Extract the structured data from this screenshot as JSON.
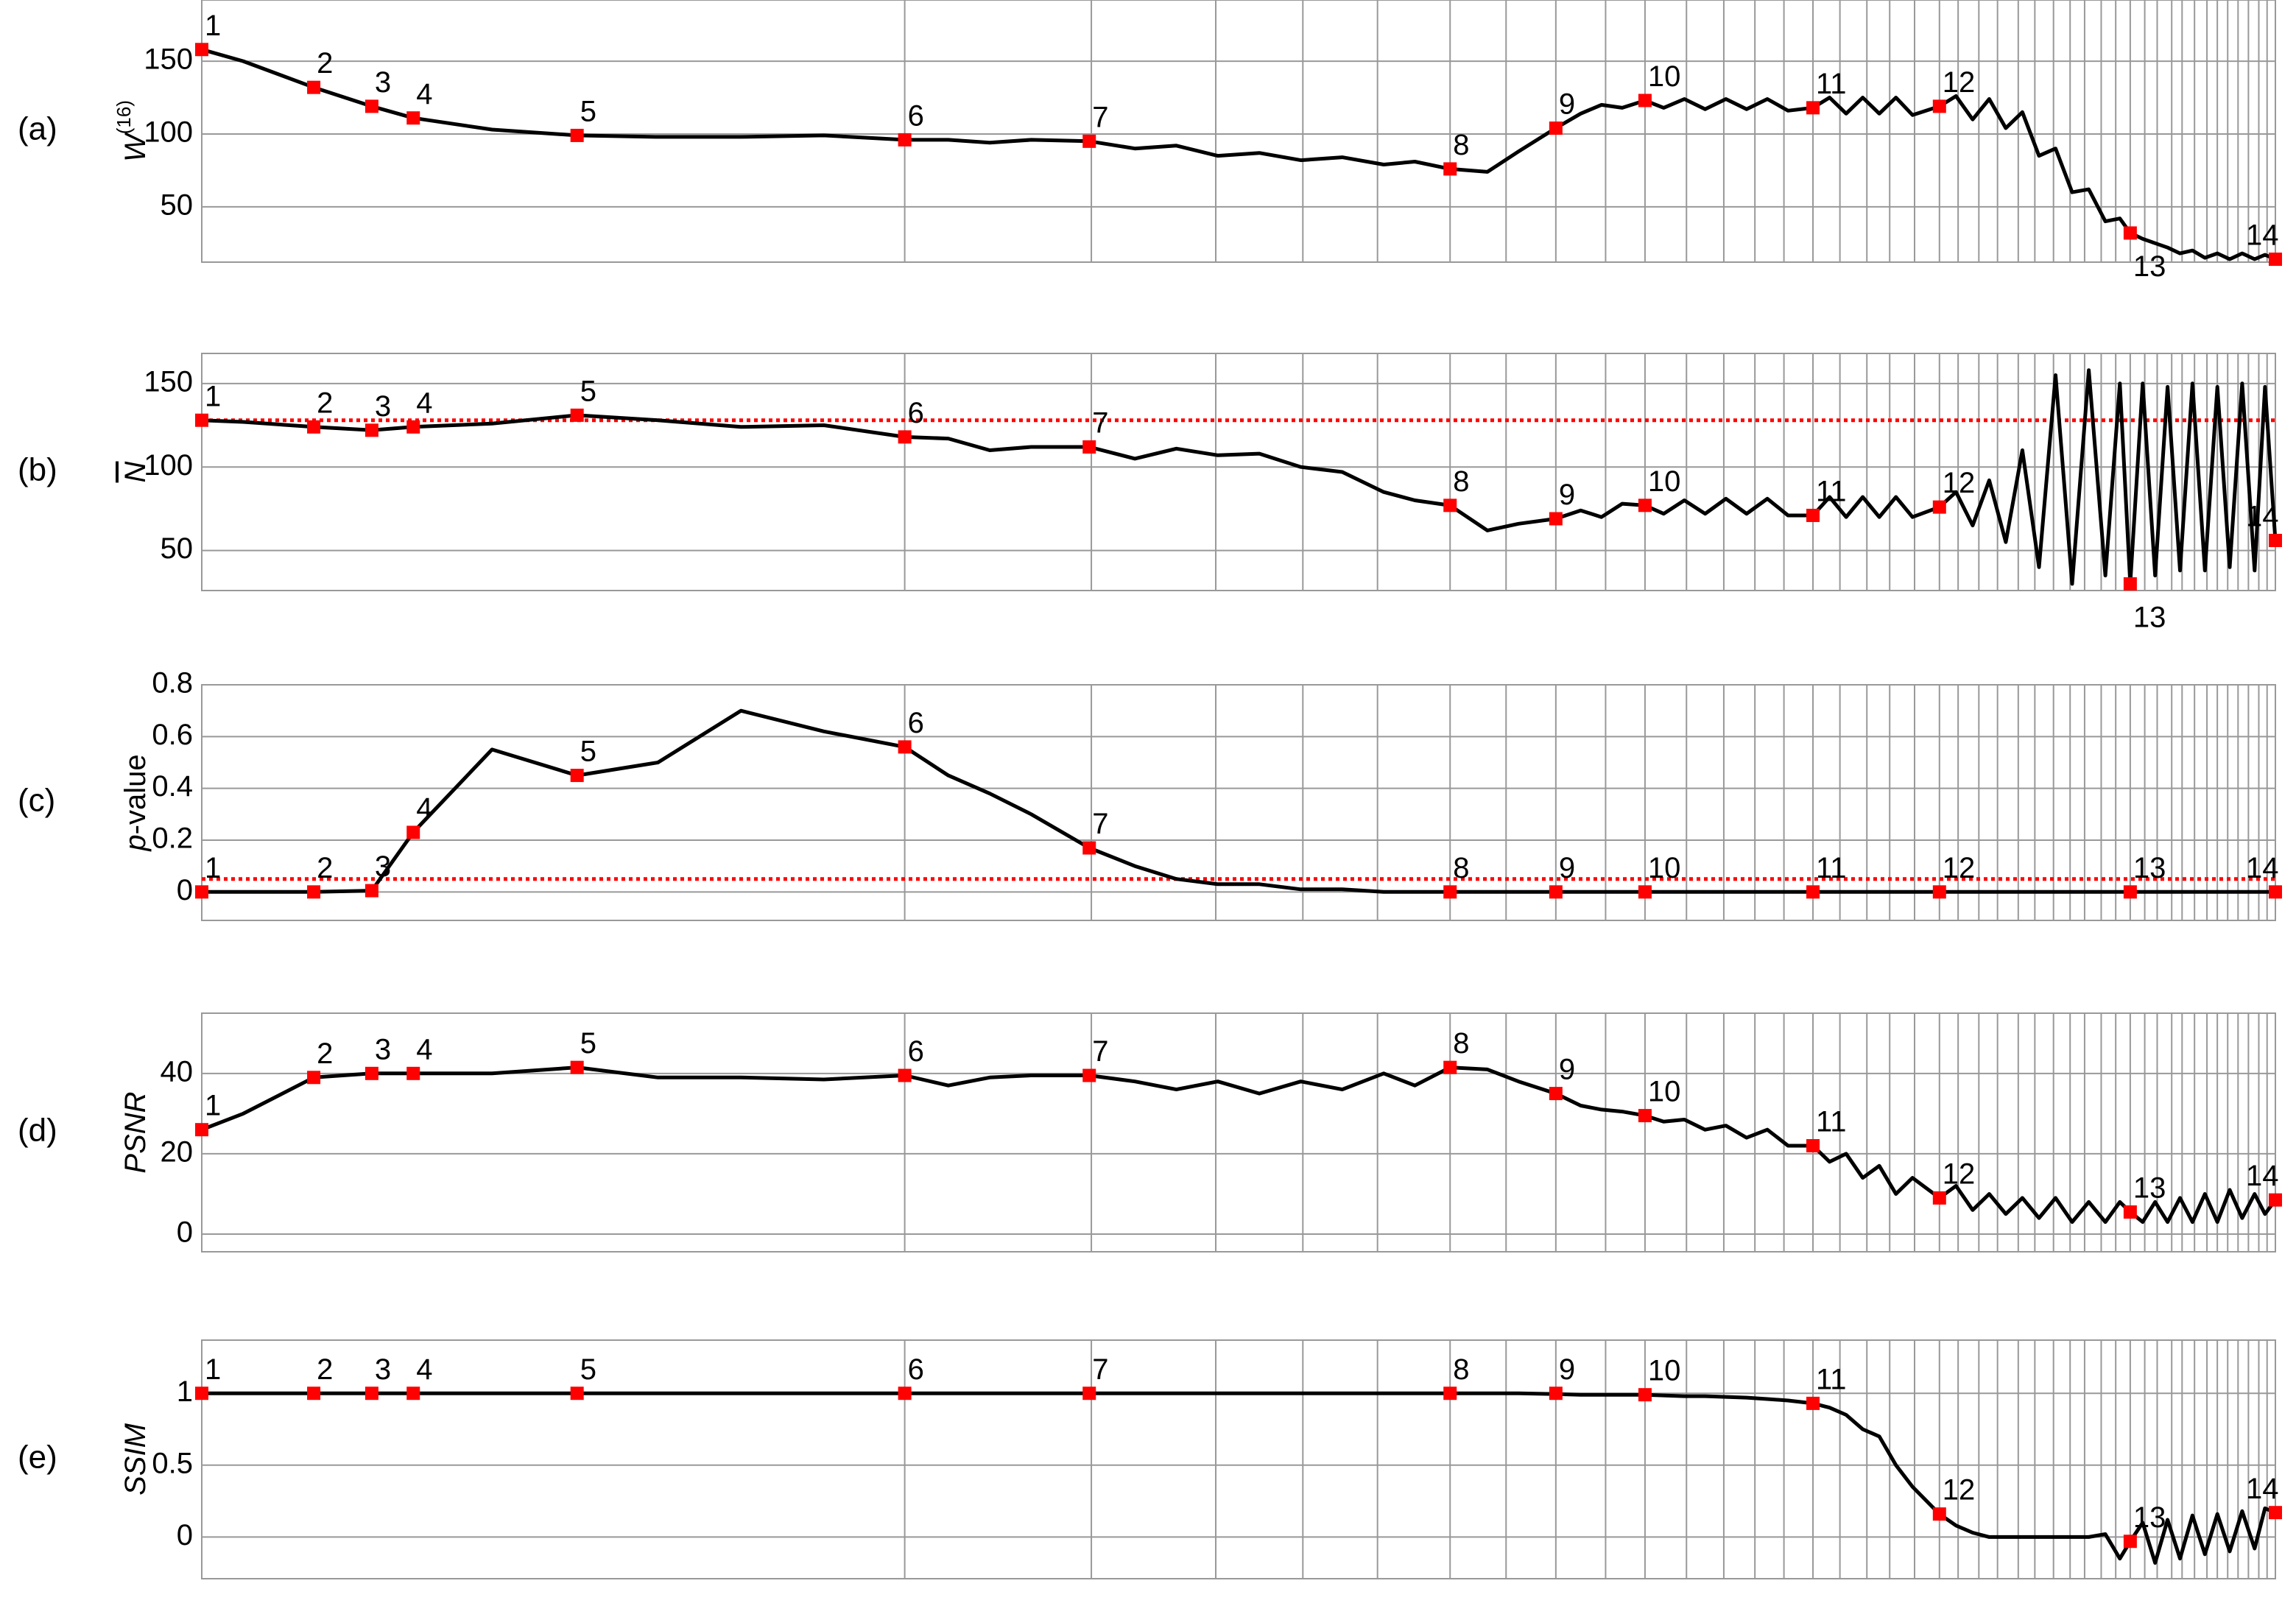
{
  "chart_data": [
    {
      "type": "line",
      "panel_label": "(a)",
      "ylabel": "W",
      "ylabel_sup": "(16)",
      "color": "#000000",
      "x": [
        0,
        2,
        5.4,
        8.2,
        10.2,
        14,
        18.1,
        22,
        26,
        30,
        33.9,
        36,
        38,
        40,
        42.8,
        45,
        47,
        49,
        51,
        53,
        55,
        57,
        58.5,
        60.2,
        62,
        63.5,
        65.3,
        66.5,
        67.5,
        68.5,
        69.6,
        70.5,
        71.5,
        72.5,
        73.5,
        74.5,
        75.5,
        76.5,
        77.7,
        78.5,
        79.3,
        80.1,
        80.9,
        81.7,
        82.5,
        83.8,
        84.6,
        85.4,
        86.2,
        87,
        87.8,
        88.6,
        89.4,
        90.2,
        91,
        91.8,
        92.5,
        93,
        93.6,
        94.2,
        94.8,
        95.4,
        96,
        96.6,
        97.2,
        97.8,
        98.4,
        99,
        99.5,
        100
      ],
      "values": [
        158,
        150,
        132,
        119,
        111,
        103,
        99,
        98,
        98,
        99,
        96,
        96,
        94,
        96,
        95,
        90,
        92,
        85,
        87,
        82,
        84,
        79,
        81,
        76,
        74,
        88,
        104,
        114,
        120,
        118,
        123,
        118,
        124,
        117,
        124,
        117,
        124,
        116,
        118,
        125,
        114,
        125,
        114,
        125,
        113,
        119,
        126,
        110,
        124,
        104,
        115,
        85,
        90,
        60,
        62,
        40,
        42,
        32,
        28,
        25,
        22,
        18,
        20,
        15,
        18,
        14,
        18,
        14,
        17,
        14
      ],
      "markers": {
        "x": [
          0,
          5.4,
          8.2,
          10.2,
          18.1,
          33.9,
          42.8,
          60.2,
          65.3,
          69.6,
          77.7,
          83.8,
          93,
          100
        ],
        "values": [
          158,
          132,
          119,
          111,
          99,
          96,
          95,
          76,
          104,
          123,
          118,
          119,
          32,
          14
        ],
        "labels": [
          "1",
          "2",
          "3",
          "4",
          "5",
          "6",
          "7",
          "8",
          "9",
          "10",
          "11",
          "12",
          "13",
          "14"
        ],
        "color": "#ff0000"
      },
      "xlim": [
        0,
        100
      ],
      "xticks": [
        33.9,
        42.9,
        48.9,
        53.1,
        56.7,
        60.2,
        62.9,
        65.3,
        67.7,
        69.6,
        71.6,
        73.4,
        74.9,
        76.3,
        77.7,
        79.0,
        80.3,
        81.4,
        82.6,
        83.8,
        84.7,
        85.7,
        86.6,
        87.6,
        88.4,
        89.3,
        90.1,
        90.8,
        91.6,
        92.3,
        93.0,
        93.7,
        94.3,
        95.0,
        95.5,
        96.1,
        96.7,
        97.2,
        97.7,
        98.2,
        98.7,
        99.2,
        99.6
      ],
      "ylim": [
        12,
        192
      ],
      "yticks": [
        50,
        100,
        150
      ],
      "grid": true
    },
    {
      "type": "line",
      "panel_label": "(b)",
      "ylabel": "N",
      "ylabel_overline": true,
      "color": "#000000",
      "x": [
        0,
        2,
        5.4,
        8.2,
        10.2,
        14,
        18.1,
        22,
        26,
        30,
        33.9,
        36,
        38,
        40,
        42.8,
        45,
        47,
        49,
        51,
        53,
        55,
        57,
        58.5,
        60.2,
        62,
        63.5,
        65.3,
        66.5,
        67.5,
        68.5,
        69.6,
        70.5,
        71.5,
        72.5,
        73.5,
        74.5,
        75.5,
        76.5,
        77.7,
        78.5,
        79.3,
        80.1,
        80.9,
        81.7,
        82.5,
        83.8,
        84.6,
        85.4,
        86.2,
        87,
        87.8,
        88.6,
        89.4,
        90.2,
        91,
        91.8,
        92.5,
        93,
        93.6,
        94.2,
        94.8,
        95.4,
        96,
        96.6,
        97.2,
        97.8,
        98.4,
        99,
        99.5,
        100
      ],
      "values": [
        128,
        127,
        124,
        122,
        124,
        126,
        131,
        128,
        124,
        125,
        118,
        117,
        110,
        112,
        112,
        105,
        111,
        107,
        108,
        100,
        97,
        85,
        80,
        77,
        62,
        66,
        69,
        74,
        70,
        78,
        77,
        72,
        80,
        72,
        81,
        72,
        81,
        71,
        71,
        82,
        70,
        82,
        70,
        82,
        70,
        76,
        85,
        65,
        92,
        55,
        110,
        40,
        155,
        30,
        158,
        35,
        150,
        30,
        150,
        35,
        148,
        38,
        150,
        38,
        148,
        40,
        150,
        38,
        148,
        56
      ],
      "markers": {
        "x": [
          0,
          5.4,
          8.2,
          10.2,
          18.1,
          33.9,
          42.8,
          60.2,
          65.3,
          69.6,
          77.7,
          83.8,
          93,
          100
        ],
        "values": [
          128,
          124,
          122,
          124,
          131,
          118,
          112,
          77,
          69,
          77,
          71,
          76,
          30,
          56
        ],
        "labels": [
          "1",
          "2",
          "3",
          "4",
          "5",
          "6",
          "7",
          "8",
          "9",
          "10",
          "11",
          "12",
          "13",
          "14"
        ],
        "color": "#ff0000"
      },
      "threshold": {
        "value": 128,
        "color": "#ff0000"
      },
      "xlim": [
        0,
        100
      ],
      "xticks": [
        33.9,
        42.9,
        48.9,
        53.1,
        56.7,
        60.2,
        62.9,
        65.3,
        67.7,
        69.6,
        71.6,
        73.4,
        74.9,
        76.3,
        77.7,
        79.0,
        80.3,
        81.4,
        82.6,
        83.8,
        84.7,
        85.7,
        86.6,
        87.6,
        88.4,
        89.3,
        90.1,
        90.8,
        91.6,
        92.3,
        93.0,
        93.7,
        94.3,
        95.0,
        95.5,
        96.1,
        96.7,
        97.2,
        97.7,
        98.2,
        98.7,
        99.2,
        99.6
      ],
      "ylim": [
        26,
        168
      ],
      "yticks": [
        50,
        100,
        150
      ],
      "grid": true
    },
    {
      "type": "line",
      "panel_label": "(c)",
      "ylabel_prefix": "p",
      "ylabel": "-value",
      "color": "#000000",
      "x": [
        0,
        2,
        5.4,
        8.2,
        10.2,
        14,
        18.1,
        22,
        26,
        30,
        33.9,
        36,
        38,
        40,
        42.8,
        45,
        47,
        49,
        51,
        53,
        55,
        57,
        58.5,
        60.2,
        62,
        63.5,
        65.3,
        66.5,
        67.5,
        68.5,
        69.6,
        70.5,
        71.5,
        72.5,
        73.5,
        74.5,
        75.5,
        76.5,
        77.7,
        78.5,
        79.3,
        80.1,
        80.9,
        81.7,
        82.5,
        83.8,
        84.6,
        85.4,
        86.2,
        87,
        87.8,
        88.6,
        89.4,
        90.2,
        91,
        91.8,
        92.5,
        93,
        93.6,
        94.2,
        94.8,
        95.4,
        96,
        96.6,
        97.2,
        97.8,
        98.4,
        99,
        99.5,
        100
      ],
      "values": [
        0,
        0,
        0,
        0.005,
        0.23,
        0.55,
        0.45,
        0.5,
        0.7,
        0.62,
        0.56,
        0.45,
        0.38,
        0.3,
        0.17,
        0.1,
        0.05,
        0.03,
        0.03,
        0.01,
        0.01,
        0,
        0,
        0,
        0,
        0,
        0,
        0,
        0,
        0,
        0,
        0,
        0,
        0,
        0,
        0,
        0,
        0,
        0,
        0,
        0,
        0,
        0,
        0,
        0,
        0,
        0,
        0,
        0,
        0,
        0,
        0,
        0,
        0,
        0,
        0,
        0,
        0,
        0,
        0,
        0,
        0,
        0,
        0,
        0,
        0,
        0,
        0,
        0,
        0
      ],
      "markers": {
        "x": [
          0,
          5.4,
          8.2,
          10.2,
          18.1,
          33.9,
          42.8,
          60.2,
          65.3,
          69.6,
          77.7,
          83.8,
          93,
          100
        ],
        "values": [
          0,
          0,
          0.005,
          0.23,
          0.45,
          0.56,
          0.17,
          0,
          0,
          0,
          0,
          0,
          0,
          0
        ],
        "labels": [
          "1",
          "2",
          "3",
          "4",
          "5",
          "6",
          "7",
          "8",
          "9",
          "10",
          "11",
          "12",
          "13",
          "14"
        ],
        "color": "#ff0000"
      },
      "threshold": {
        "value": 0.05,
        "color": "#ff0000"
      },
      "xlim": [
        0,
        100
      ],
      "xticks": [
        33.9,
        42.9,
        48.9,
        53.1,
        56.7,
        60.2,
        62.9,
        65.3,
        67.7,
        69.6,
        71.6,
        73.4,
        74.9,
        76.3,
        77.7,
        79.0,
        80.3,
        81.4,
        82.6,
        83.8,
        84.7,
        85.7,
        86.6,
        87.6,
        88.4,
        89.3,
        90.1,
        90.8,
        91.6,
        92.3,
        93.0,
        93.7,
        94.3,
        95.0,
        95.5,
        96.1,
        96.7,
        97.2,
        97.7,
        98.2,
        98.7,
        99.2,
        99.6
      ],
      "ylim": [
        -0.11,
        0.8
      ],
      "yticks": [
        0,
        0.2,
        0.4,
        0.6,
        0.8
      ],
      "grid": true
    },
    {
      "type": "line",
      "panel_label": "(d)",
      "ylabel": "PSNR",
      "color": "#000000",
      "x": [
        0,
        2,
        5.4,
        8.2,
        10.2,
        14,
        18.1,
        22,
        26,
        30,
        33.9,
        36,
        38,
        40,
        42.8,
        45,
        47,
        49,
        51,
        53,
        55,
        57,
        58.5,
        60.2,
        62,
        63.5,
        65.3,
        66.5,
        67.5,
        68.5,
        69.6,
        70.5,
        71.5,
        72.5,
        73.5,
        74.5,
        75.5,
        76.5,
        77.7,
        78.5,
        79.3,
        80.1,
        80.9,
        81.7,
        82.5,
        83.8,
        84.6,
        85.4,
        86.2,
        87,
        87.8,
        88.6,
        89.4,
        90.2,
        91,
        91.8,
        92.5,
        93,
        93.6,
        94.2,
        94.8,
        95.4,
        96,
        96.6,
        97.2,
        97.8,
        98.4,
        99,
        99.5,
        100
      ],
      "values": [
        26,
        30,
        39,
        40,
        40,
        40,
        41.5,
        39,
        39,
        38.5,
        39.5,
        37,
        39,
        39.5,
        39.5,
        38,
        36,
        38,
        35,
        38,
        36,
        40,
        37,
        41.5,
        41,
        38,
        35,
        32,
        31,
        30.5,
        29.5,
        28,
        28.5,
        26,
        27,
        24,
        26,
        22,
        22,
        18,
        20,
        14,
        17,
        10,
        14,
        9,
        12,
        6,
        10,
        5,
        9,
        4,
        9,
        3,
        8,
        3,
        8,
        5.5,
        3,
        8,
        3,
        9,
        3,
        10,
        3,
        11,
        4,
        10,
        5,
        8.5
      ],
      "markers": {
        "x": [
          0,
          5.4,
          8.2,
          10.2,
          18.1,
          33.9,
          42.8,
          60.2,
          65.3,
          69.6,
          77.7,
          83.8,
          93,
          100
        ],
        "values": [
          26,
          39,
          40,
          40,
          41.5,
          39.5,
          39.5,
          41.5,
          35,
          29.5,
          22,
          9,
          5.5,
          8.5
        ],
        "labels": [
          "1",
          "2",
          "3",
          "4",
          "5",
          "6",
          "7",
          "8",
          "9",
          "10",
          "11",
          "12",
          "13",
          "14"
        ],
        "color": "#ff0000"
      },
      "xlim": [
        0,
        100
      ],
      "xticks": [
        33.9,
        42.9,
        48.9,
        53.1,
        56.7,
        60.2,
        62.9,
        65.3,
        67.7,
        69.6,
        71.6,
        73.4,
        74.9,
        76.3,
        77.7,
        79.0,
        80.3,
        81.4,
        82.6,
        83.8,
        84.7,
        85.7,
        86.6,
        87.6,
        88.4,
        89.3,
        90.1,
        90.8,
        91.6,
        92.3,
        93.0,
        93.7,
        94.3,
        95.0,
        95.5,
        96.1,
        96.7,
        97.2,
        97.7,
        98.2,
        98.7,
        99.2,
        99.6
      ],
      "ylim": [
        -4.4,
        55
      ],
      "yticks": [
        0,
        20,
        40
      ],
      "grid": true
    },
    {
      "type": "line",
      "panel_label": "(e)",
      "ylabel": "SSIM",
      "color": "#000000",
      "x": [
        0,
        2,
        5.4,
        8.2,
        10.2,
        14,
        18.1,
        22,
        26,
        30,
        33.9,
        36,
        38,
        40,
        42.8,
        45,
        47,
        49,
        51,
        53,
        55,
        57,
        58.5,
        60.2,
        62,
        63.5,
        65.3,
        66.5,
        67.5,
        68.5,
        69.6,
        70.5,
        71.5,
        72.5,
        73.5,
        74.5,
        75.5,
        76.5,
        77.7,
        78.5,
        79.3,
        80.1,
        80.9,
        81.7,
        82.5,
        83.8,
        84.6,
        85.4,
        86.2,
        87,
        87.8,
        88.6,
        89.4,
        90.2,
        91,
        91.8,
        92.5,
        93,
        93.6,
        94.2,
        94.8,
        95.4,
        96,
        96.6,
        97.2,
        97.8,
        98.4,
        99,
        99.5,
        100
      ],
      "values": [
        1,
        1,
        1,
        1,
        1,
        1,
        1,
        1,
        1,
        1,
        1,
        1,
        1,
        1,
        1,
        1,
        1,
        1,
        1,
        1,
        1,
        1,
        1,
        1,
        1,
        1,
        0.995,
        0.99,
        0.99,
        0.99,
        0.99,
        0.985,
        0.98,
        0.98,
        0.975,
        0.97,
        0.96,
        0.95,
        0.93,
        0.9,
        0.85,
        0.75,
        0.7,
        0.5,
        0.35,
        0.16,
        0.08,
        0.03,
        0,
        0,
        0,
        0,
        0,
        0,
        0,
        0.02,
        -0.15,
        -0.03,
        0.1,
        -0.18,
        0.12,
        -0.15,
        0.15,
        -0.12,
        0.16,
        -0.1,
        0.18,
        -0.08,
        0.2,
        0.17
      ],
      "markers": {
        "x": [
          0,
          5.4,
          8.2,
          10.2,
          18.1,
          33.9,
          42.8,
          60.2,
          65.3,
          69.6,
          77.7,
          83.8,
          93,
          100
        ],
        "values": [
          1,
          1,
          1,
          1,
          1,
          1,
          1,
          1,
          1,
          0.99,
          0.93,
          0.16,
          -0.03,
          0.17
        ],
        "labels": [
          "1",
          "2",
          "3",
          "4",
          "5",
          "6",
          "7",
          "8",
          "9",
          "10",
          "11",
          "12",
          "13",
          "14"
        ],
        "color": "#ff0000"
      },
      "xlim": [
        0,
        100
      ],
      "xticks": [
        33.9,
        42.9,
        48.9,
        53.1,
        56.7,
        60.2,
        62.9,
        65.3,
        67.7,
        69.6,
        71.6,
        73.4,
        74.9,
        76.3,
        77.7,
        79.0,
        80.3,
        81.4,
        82.6,
        83.8,
        84.7,
        85.7,
        86.6,
        87.6,
        88.4,
        89.3,
        90.1,
        90.8,
        91.6,
        92.3,
        93.0,
        93.7,
        94.3,
        95.0,
        95.5,
        96.1,
        96.7,
        97.2,
        97.7,
        98.2,
        98.7,
        99.2,
        99.6
      ],
      "ylim": [
        -0.29,
        1.37
      ],
      "yticks": [
        0,
        0.5,
        1
      ],
      "grid": true
    }
  ]
}
